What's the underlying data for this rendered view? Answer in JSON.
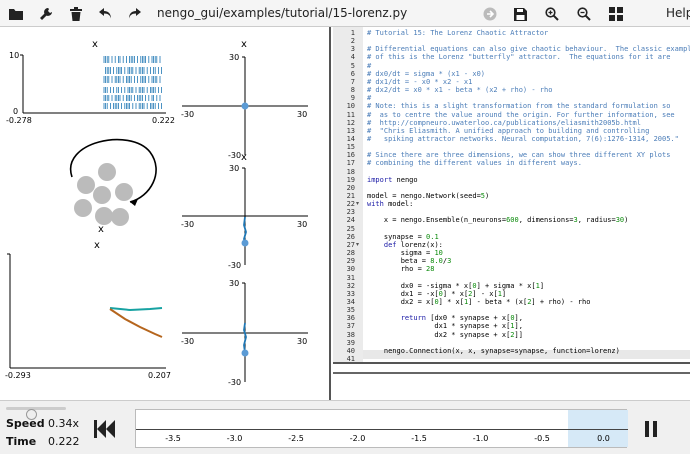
{
  "toolbar": {
    "filename": "nengo_gui/examples/tutorial/15-lorenz.py",
    "help_label": "Help",
    "icons": [
      "folder-icon",
      "wrench-icon",
      "trash-icon",
      "undo-icon",
      "redo-icon",
      "sync-icon",
      "save-icon",
      "zoom-in-icon",
      "zoom-out-icon",
      "grid-icon"
    ]
  },
  "plots": {
    "raster_title": "x",
    "raster_y_top": "10",
    "raster_y_bottom": "0",
    "raster_x_left": "-0.278",
    "raster_x_right": "0.222",
    "xy1_title": "x",
    "xy1_y_top": "30",
    "xy1_y_bottom": "-30",
    "xy1_x_left": "-30",
    "xy1_x_right": "30",
    "xy2_title": "x",
    "xy2_y_top": "30",
    "xy2_y_bottom": "-30",
    "xy2_x_left": "-30",
    "xy2_x_right": "30",
    "value_title": "x",
    "value_x_left": "-0.293",
    "value_x_right": "0.207",
    "network_label": "x",
    "xy3_y_top": "30",
    "xy3_y_bottom": "-30",
    "xy3_x_left": "-30",
    "xy3_x_right": "30"
  },
  "editor": {
    "lines": [
      {
        "n": "1",
        "t": "# Tutorial 15: The Lorenz Chaotic Attractor",
        "k": "comment"
      },
      {
        "n": "2",
        "t": "",
        "k": ""
      },
      {
        "n": "3",
        "t": "# Differential equations can also give chaotic behaviour.  The classic example",
        "k": "comment"
      },
      {
        "n": "4",
        "t": "# of this is the Lorenz \"butterfly\" attractor.  The equations for it are",
        "k": "comment"
      },
      {
        "n": "5",
        "t": "#",
        "k": "comment"
      },
      {
        "n": "6",
        "t": "# dx0/dt = sigma * (x1 - x0)",
        "k": "comment"
      },
      {
        "n": "7",
        "t": "# dx1/dt = - x0 * x2 - x1",
        "k": "comment"
      },
      {
        "n": "8",
        "t": "# dx2/dt = x0 * x1 - beta * (x2 + rho) - rho",
        "k": "comment"
      },
      {
        "n": "9",
        "t": "#",
        "k": "comment"
      },
      {
        "n": "10",
        "t": "# Note: this is a slight transformation from the standard formulation so",
        "k": "comment"
      },
      {
        "n": "11",
        "t": "#  as to centre the value around the origin. For further information, see",
        "k": "comment"
      },
      {
        "n": "12",
        "t": "#  http://compneuro.uwaterloo.ca/publications/eliasmith2005b.html",
        "k": "comment"
      },
      {
        "n": "13",
        "t": "#  \"Chris Eliasmith. A unified approach to building and controlling",
        "k": "comment"
      },
      {
        "n": "14",
        "t": "#   spiking attractor networks. Neural computation, 7(6):1276-1314, 2005.\"",
        "k": "comment"
      },
      {
        "n": "15",
        "t": "",
        "k": ""
      },
      {
        "n": "16",
        "t": "# Since there are three dimensions, we can show three different XY plots",
        "k": "comment"
      },
      {
        "n": "17",
        "t": "# combining the different values in different ways.",
        "k": "comment"
      },
      {
        "n": "18",
        "t": "",
        "k": ""
      },
      {
        "n": "19",
        "t": "import nengo",
        "k": "import"
      },
      {
        "n": "20",
        "t": "",
        "k": ""
      },
      {
        "n": "21",
        "t": "model = nengo.Network(seed=5)",
        "k": "code"
      },
      {
        "n": "22",
        "t": "with model:",
        "k": "with",
        "fold": "▾"
      },
      {
        "n": "23",
        "t": "",
        "k": ""
      },
      {
        "n": "24",
        "t": "    x = nengo.Ensemble(n_neurons=600, dimensions=3, radius=30)",
        "k": "code"
      },
      {
        "n": "25",
        "t": "",
        "k": ""
      },
      {
        "n": "26",
        "t": "    synapse = 0.1",
        "k": "code"
      },
      {
        "n": "27",
        "t": "    def lorenz(x):",
        "k": "def",
        "fold": "▾"
      },
      {
        "n": "28",
        "t": "        sigma = 10",
        "k": "code"
      },
      {
        "n": "29",
        "t": "        beta = 8.0/3",
        "k": "code"
      },
      {
        "n": "30",
        "t": "        rho = 28",
        "k": "code"
      },
      {
        "n": "31",
        "t": "",
        "k": ""
      },
      {
        "n": "32",
        "t": "        dx0 = -sigma * x[0] + sigma * x[1]",
        "k": "code"
      },
      {
        "n": "33",
        "t": "        dx1 = -x[0] * x[2] - x[1]",
        "k": "code"
      },
      {
        "n": "34",
        "t": "        dx2 = x[0] * x[1] - beta * (x[2] + rho) - rho",
        "k": "code"
      },
      {
        "n": "35",
        "t": "",
        "k": ""
      },
      {
        "n": "36",
        "t": "        return [dx0 * synapse + x[0],",
        "k": "return"
      },
      {
        "n": "37",
        "t": "                dx1 * synapse + x[1],",
        "k": "code"
      },
      {
        "n": "38",
        "t": "                dx2 * synapse + x[2]]",
        "k": "code"
      },
      {
        "n": "39",
        "t": "",
        "k": ""
      },
      {
        "n": "40",
        "t": "    nengo.Connection(x, x, synapse=synapse, function=lorenz)",
        "k": "code"
      },
      {
        "n": "41",
        "t": "",
        "k": ""
      }
    ]
  },
  "sim": {
    "speed_label": "Speed",
    "speed_value": "0.34x",
    "time_label": "Time",
    "time_value": "0.222",
    "timeline_ticks": [
      "-3.5",
      "-3.0",
      "-2.5",
      "-2.0",
      "-1.5",
      "-1.0",
      "-0.5",
      "0.0"
    ]
  },
  "colors": {
    "accent_blue": "#1f77b4",
    "teal": "#17a2a2",
    "orange_brown": "#b5651d"
  }
}
